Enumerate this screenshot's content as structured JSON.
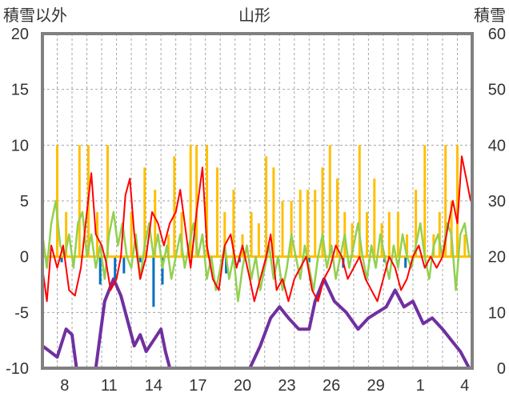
{
  "chart_data": {
    "type": "line",
    "title": "山形",
    "left_axis_label": "積雪以外",
    "right_axis_label": "積雪",
    "left_axis": {
      "min": -10,
      "max": 20,
      "ticks": [
        "20",
        "15",
        "10",
        "5",
        "0",
        "-5",
        "-10"
      ]
    },
    "right_axis": {
      "min": 0,
      "max": 60,
      "ticks": [
        "60",
        "50",
        "40",
        "30",
        "20",
        "10",
        "0"
      ]
    },
    "x_axis": {
      "day_count": 29,
      "tick_labels": [
        {
          "day_index": 1,
          "label": "8"
        },
        {
          "day_index": 4,
          "label": "11"
        },
        {
          "day_index": 7,
          "label": "14"
        },
        {
          "day_index": 10,
          "label": "17"
        },
        {
          "day_index": 13,
          "label": "20"
        },
        {
          "day_index": 16,
          "label": "23"
        },
        {
          "day_index": 19,
          "label": "26"
        },
        {
          "day_index": 22,
          "label": "29"
        },
        {
          "day_index": 25,
          "label": "1"
        },
        {
          "day_index": 28,
          "label": "4"
        }
      ]
    },
    "grid": true,
    "colors": {
      "temp_max": "#ff0000",
      "temp_min": "#92d050",
      "precip": "#ffc000",
      "negative_bar": "#0070c0",
      "snow_depth": "#7030a0",
      "frame": "#808080",
      "grid": "#a6a6a6"
    },
    "snow_depth_steps": [
      [
        0,
        4
      ],
      [
        0.5,
        3
      ],
      [
        1,
        2
      ],
      [
        1.6,
        7
      ],
      [
        2.0,
        6
      ],
      [
        2.3,
        0
      ],
      [
        3.6,
        0
      ],
      [
        4.2,
        12
      ],
      [
        4.8,
        16
      ],
      [
        5.3,
        13
      ],
      [
        5.8,
        8
      ],
      [
        6.2,
        4
      ],
      [
        6.6,
        6
      ],
      [
        7.0,
        3
      ],
      [
        7.5,
        5
      ],
      [
        8.0,
        7
      ],
      [
        8.3,
        3
      ],
      [
        8.6,
        0
      ],
      [
        14.0,
        0
      ],
      [
        14.7,
        4
      ],
      [
        15.4,
        9
      ],
      [
        16.0,
        11
      ],
      [
        16.6,
        9
      ],
      [
        17.3,
        7
      ],
      [
        18.0,
        7
      ],
      [
        18.4,
        12
      ],
      [
        19.0,
        16
      ],
      [
        19.7,
        12
      ],
      [
        20.5,
        10
      ],
      [
        21.3,
        7
      ],
      [
        22.0,
        9
      ],
      [
        22.6,
        10
      ],
      [
        23.2,
        11
      ],
      [
        23.8,
        14
      ],
      [
        24.4,
        11
      ],
      [
        25.0,
        12
      ],
      [
        25.7,
        8
      ],
      [
        26.3,
        9
      ],
      [
        27.0,
        7
      ],
      [
        27.6,
        5
      ],
      [
        28.2,
        3
      ],
      [
        28.8,
        0
      ],
      [
        29,
        0
      ]
    ],
    "precip_bars": [
      [
        1,
        10
      ],
      [
        1.6,
        4
      ],
      [
        2.5,
        10
      ],
      [
        3.1,
        10
      ],
      [
        3.7,
        4
      ],
      [
        4.4,
        10
      ],
      [
        6.0,
        4
      ],
      [
        6.9,
        8
      ],
      [
        7.6,
        6
      ],
      [
        8.5,
        2
      ],
      [
        8.9,
        9
      ],
      [
        9.4,
        4
      ],
      [
        10.0,
        10
      ],
      [
        10.4,
        10
      ],
      [
        11.1,
        10
      ],
      [
        11.8,
        8
      ],
      [
        12.3,
        4
      ],
      [
        12.9,
        6
      ],
      [
        13.5,
        2
      ],
      [
        14.1,
        4
      ],
      [
        14.6,
        3
      ],
      [
        15.1,
        9
      ],
      [
        15.6,
        8
      ],
      [
        16.2,
        5
      ],
      [
        16.8,
        5
      ],
      [
        17.4,
        6
      ],
      [
        17.9,
        6
      ],
      [
        18.4,
        6
      ],
      [
        18.9,
        8
      ],
      [
        19.4,
        10
      ],
      [
        19.9,
        7
      ],
      [
        20.4,
        4
      ],
      [
        20.9,
        3
      ],
      [
        21.4,
        10
      ],
      [
        21.9,
        4
      ],
      [
        22.4,
        7
      ],
      [
        22.9,
        3
      ],
      [
        23.4,
        4
      ],
      [
        24.0,
        4
      ],
      [
        24.6,
        2
      ],
      [
        25.2,
        6
      ],
      [
        25.8,
        10
      ],
      [
        26.4,
        2
      ],
      [
        26.8,
        4
      ],
      [
        27.2,
        10
      ],
      [
        27.6,
        5
      ],
      [
        28.0,
        10
      ],
      [
        28.5,
        2
      ]
    ],
    "negative_bars": [
      [
        1.3,
        -0.5
      ],
      [
        3.9,
        -2.5
      ],
      [
        4.9,
        -2.0
      ],
      [
        5.5,
        -1.5
      ],
      [
        6.6,
        -0.5
      ],
      [
        7.5,
        -4.5
      ],
      [
        8.1,
        -2.5
      ],
      [
        12.4,
        -1.5
      ],
      [
        13.3,
        -0.5
      ],
      [
        18.0,
        -0.5
      ],
      [
        20.3,
        -1.0
      ],
      [
        23.1,
        -0.5
      ],
      [
        24.5,
        -1.0
      ]
    ],
    "temp_max_points": [
      [
        0,
        -1
      ],
      [
        0.3,
        -4
      ],
      [
        0.6,
        1
      ],
      [
        1.0,
        -1
      ],
      [
        1.4,
        1
      ],
      [
        1.8,
        -3
      ],
      [
        2.2,
        -3.5
      ],
      [
        2.6,
        -1
      ],
      [
        3.0,
        4
      ],
      [
        3.3,
        7.5
      ],
      [
        3.6,
        2
      ],
      [
        4.0,
        1
      ],
      [
        4.3,
        -0.5
      ],
      [
        4.6,
        -3
      ],
      [
        5.0,
        -2
      ],
      [
        5.3,
        0
      ],
      [
        5.6,
        5.5
      ],
      [
        5.9,
        7
      ],
      [
        6.2,
        2
      ],
      [
        6.6,
        -2
      ],
      [
        7.0,
        0
      ],
      [
        7.4,
        4
      ],
      [
        7.8,
        3
      ],
      [
        8.2,
        1
      ],
      [
        8.6,
        3
      ],
      [
        9.0,
        4
      ],
      [
        9.3,
        6
      ],
      [
        9.6,
        3
      ],
      [
        10.0,
        -1
      ],
      [
        10.4,
        4
      ],
      [
        10.8,
        8
      ],
      [
        11.1,
        1
      ],
      [
        11.5,
        -2
      ],
      [
        11.9,
        -3
      ],
      [
        12.3,
        1
      ],
      [
        12.7,
        2
      ],
      [
        13.1,
        -1
      ],
      [
        13.5,
        1
      ],
      [
        14.0,
        -2
      ],
      [
        14.3,
        -4
      ],
      [
        14.7,
        -2
      ],
      [
        15.1,
        0
      ],
      [
        15.4,
        2
      ],
      [
        15.8,
        -3
      ],
      [
        16.2,
        -2
      ],
      [
        16.6,
        -4
      ],
      [
        17.0,
        -2
      ],
      [
        17.4,
        -1
      ],
      [
        17.8,
        0
      ],
      [
        18.2,
        -3
      ],
      [
        18.6,
        -4
      ],
      [
        19.0,
        -2
      ],
      [
        19.4,
        -1
      ],
      [
        19.8,
        1
      ],
      [
        20.2,
        0
      ],
      [
        20.6,
        -2
      ],
      [
        21.0,
        -1
      ],
      [
        21.4,
        0
      ],
      [
        21.8,
        -2
      ],
      [
        22.2,
        -3
      ],
      [
        22.6,
        -4
      ],
      [
        23.0,
        -2
      ],
      [
        23.4,
        0
      ],
      [
        23.8,
        -1
      ],
      [
        24.2,
        -3
      ],
      [
        24.6,
        -2
      ],
      [
        25.0,
        0
      ],
      [
        25.4,
        1
      ],
      [
        25.8,
        -1
      ],
      [
        26.2,
        0
      ],
      [
        26.6,
        -1
      ],
      [
        27.0,
        0
      ],
      [
        27.4,
        3
      ],
      [
        27.7,
        5
      ],
      [
        28.0,
        3
      ],
      [
        28.3,
        9
      ],
      [
        28.6,
        7
      ],
      [
        28.9,
        5
      ]
    ],
    "temp_min_points": [
      [
        0,
        2
      ],
      [
        0.3,
        -1
      ],
      [
        0.6,
        3
      ],
      [
        0.9,
        5
      ],
      [
        1.2,
        1
      ],
      [
        1.5,
        0
      ],
      [
        1.8,
        2
      ],
      [
        2.1,
        -1
      ],
      [
        2.4,
        3
      ],
      [
        2.7,
        4
      ],
      [
        3.0,
        0
      ],
      [
        3.3,
        2
      ],
      [
        3.6,
        -1
      ],
      [
        3.9,
        1
      ],
      [
        4.2,
        -2
      ],
      [
        4.5,
        2
      ],
      [
        4.8,
        4
      ],
      [
        5.1,
        1
      ],
      [
        5.4,
        3
      ],
      [
        5.7,
        0
      ],
      [
        6.0,
        -1
      ],
      [
        6.3,
        2
      ],
      [
        6.6,
        -2
      ],
      [
        6.9,
        1
      ],
      [
        7.2,
        3
      ],
      [
        7.5,
        0
      ],
      [
        7.8,
        2
      ],
      [
        8.1,
        -1
      ],
      [
        8.4,
        1
      ],
      [
        8.7,
        -2
      ],
      [
        9.0,
        0
      ],
      [
        9.3,
        2
      ],
      [
        9.6,
        -1
      ],
      [
        9.9,
        1
      ],
      [
        10.2,
        3
      ],
      [
        10.5,
        0
      ],
      [
        10.8,
        2
      ],
      [
        11.1,
        -2
      ],
      [
        11.4,
        0
      ],
      [
        11.7,
        -3
      ],
      [
        12.0,
        -1
      ],
      [
        12.3,
        1
      ],
      [
        12.6,
        -2
      ],
      [
        12.9,
        0
      ],
      [
        13.2,
        -4
      ],
      [
        13.5,
        -1
      ],
      [
        13.8,
        1
      ],
      [
        14.1,
        -2
      ],
      [
        14.4,
        0
      ],
      [
        14.7,
        -3
      ],
      [
        15.0,
        -1
      ],
      [
        15.3,
        1
      ],
      [
        15.6,
        -2
      ],
      [
        15.9,
        0
      ],
      [
        16.2,
        -3
      ],
      [
        16.5,
        -1
      ],
      [
        16.8,
        2
      ],
      [
        17.1,
        0
      ],
      [
        17.4,
        -2
      ],
      [
        17.7,
        1
      ],
      [
        18.0,
        -1
      ],
      [
        18.3,
        -3
      ],
      [
        18.6,
        0
      ],
      [
        18.9,
        2
      ],
      [
        19.2,
        -1
      ],
      [
        19.5,
        1
      ],
      [
        19.8,
        -2
      ],
      [
        20.1,
        0
      ],
      [
        20.4,
        2
      ],
      [
        20.7,
        -1
      ],
      [
        21.0,
        1
      ],
      [
        21.3,
        3
      ],
      [
        21.6,
        0
      ],
      [
        21.9,
        -2
      ],
      [
        22.2,
        1
      ],
      [
        22.5,
        -1
      ],
      [
        22.8,
        2
      ],
      [
        23.1,
        0
      ],
      [
        23.4,
        -2
      ],
      [
        23.7,
        1
      ],
      [
        24.0,
        -1
      ],
      [
        24.3,
        2
      ],
      [
        24.6,
        0
      ],
      [
        24.9,
        -1
      ],
      [
        25.2,
        1
      ],
      [
        25.5,
        3
      ],
      [
        25.8,
        0
      ],
      [
        26.1,
        -2
      ],
      [
        26.4,
        1
      ],
      [
        26.7,
        2
      ],
      [
        27.0,
        0
      ],
      [
        27.3,
        3
      ],
      [
        27.6,
        2
      ],
      [
        27.9,
        -3
      ],
      [
        28.2,
        2
      ],
      [
        28.5,
        3
      ],
      [
        28.8,
        0
      ]
    ]
  }
}
